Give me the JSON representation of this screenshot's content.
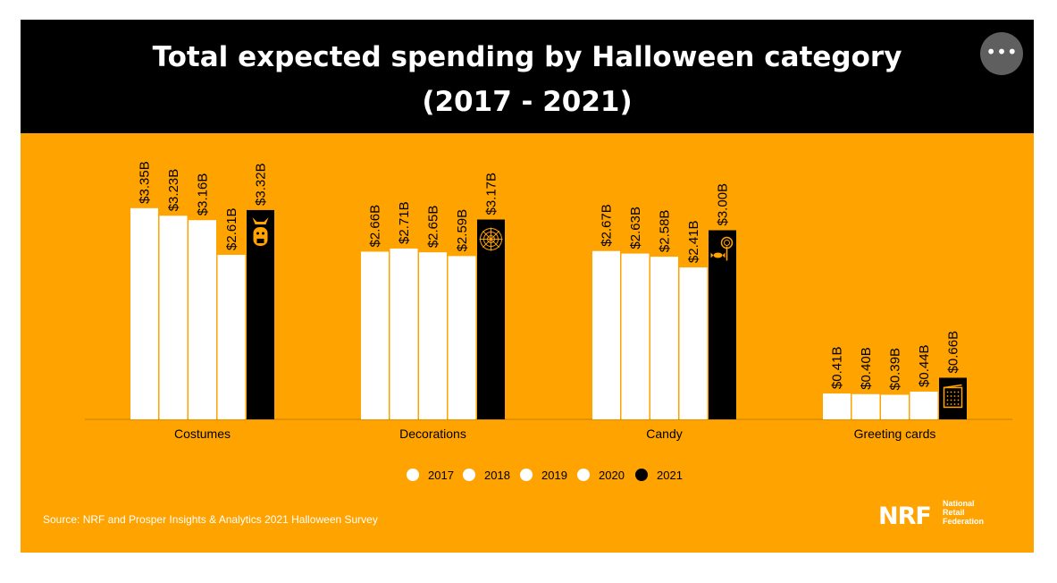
{
  "header": {
    "title_line1": "Total expected spending by Halloween category",
    "title_line2": "(2017 - 2021)",
    "more_button": "•••"
  },
  "footer": {
    "source": "Source: NRF and Prosper Insights & Analytics 2021 Halloween Survey",
    "logo_mark": "NRF",
    "logo_text": [
      "National",
      "Retail",
      "Federation"
    ]
  },
  "colors": {
    "background": "#FFA300",
    "header": "#000000",
    "bar_past": "#FFFFFF",
    "bar_2021": "#000000",
    "text": "#000000"
  },
  "chart_data": {
    "type": "bar",
    "title": "Total expected spending by Halloween category (2017 - 2021)",
    "xlabel": "",
    "ylabel": "",
    "ylim": [
      0,
      3.6
    ],
    "categories": [
      "Costumes",
      "Decorations",
      "Candy",
      "Greeting cards"
    ],
    "icons": [
      "bat-costume-icon",
      "spider-web-icon",
      "candy-icon",
      "greeting-card-icon"
    ],
    "series": [
      {
        "name": "2017",
        "color": "#FFFFFF",
        "values": [
          3.35,
          2.66,
          2.67,
          0.41
        ],
        "labels": [
          "$3.35B",
          "$2.66B",
          "$2.67B",
          "$0.41B"
        ]
      },
      {
        "name": "2018",
        "color": "#FFFFFF",
        "values": [
          3.23,
          2.71,
          2.63,
          0.4
        ],
        "labels": [
          "$3.23B",
          "$2.71B",
          "$2.63B",
          "$0.40B"
        ]
      },
      {
        "name": "2019",
        "color": "#FFFFFF",
        "values": [
          3.16,
          2.65,
          2.58,
          0.39
        ],
        "labels": [
          "$3.16B",
          "$2.65B",
          "$2.58B",
          "$0.39B"
        ]
      },
      {
        "name": "2020",
        "color": "#FFFFFF",
        "values": [
          2.61,
          2.59,
          2.41,
          0.44
        ],
        "labels": [
          "$2.61B",
          "$2.59B",
          "$2.41B",
          "$0.44B"
        ]
      },
      {
        "name": "2021",
        "color": "#000000",
        "values": [
          3.32,
          3.17,
          3.0,
          0.66
        ],
        "labels": [
          "$3.32B",
          "$3.17B",
          "$3.00B",
          "$0.66B"
        ]
      }
    ],
    "legend_position": "bottom-center"
  }
}
